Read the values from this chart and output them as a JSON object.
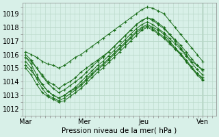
{
  "bg_color": "#d8f0e8",
  "grid_color": "#b8d8c8",
  "line_color": "#1a6e1a",
  "xlabel": "Pression niveau de la mer( hPa )",
  "xtick_labels": [
    "Mar",
    "Mer",
    "Jeu",
    "Ven"
  ],
  "xtick_positions": [
    0,
    96,
    192,
    288
  ],
  "ylim": [
    1011.5,
    1019.8
  ],
  "yticks": [
    1012,
    1013,
    1014,
    1015,
    1016,
    1017,
    1018,
    1019
  ],
  "xlim": [
    -5,
    310
  ],
  "vline_x": 288,
  "series": [
    [
      1016.2,
      1016.0,
      1015.8,
      1015.5,
      1015.3,
      1015.2,
      1015.0,
      1015.2,
      1015.5,
      1015.8,
      1016.0,
      1016.3,
      1016.6,
      1016.9,
      1017.2,
      1017.5,
      1017.8,
      1018.1,
      1018.4,
      1018.7,
      1019.0,
      1019.3,
      1019.5,
      1019.4,
      1019.2,
      1019.0,
      1018.5,
      1018.0,
      1017.5,
      1017.0,
      1016.5,
      1016.0,
      1015.5
    ],
    [
      1015.8,
      1015.5,
      1015.0,
      1014.5,
      1014.0,
      1013.8,
      1013.5,
      1013.8,
      1014.0,
      1014.3,
      1014.7,
      1015.0,
      1015.3,
      1015.6,
      1015.9,
      1016.2,
      1016.6,
      1017.0,
      1017.4,
      1017.8,
      1018.2,
      1018.5,
      1018.7,
      1018.6,
      1018.3,
      1018.0,
      1017.5,
      1017.0,
      1016.5,
      1016.0,
      1015.5,
      1015.2,
      1014.9
    ],
    [
      1015.2,
      1014.8,
      1014.3,
      1013.8,
      1013.3,
      1013.0,
      1012.8,
      1013.0,
      1013.3,
      1013.5,
      1013.8,
      1014.2,
      1014.6,
      1015.0,
      1015.3,
      1015.7,
      1016.1,
      1016.5,
      1016.9,
      1017.3,
      1017.7,
      1018.0,
      1018.2,
      1018.0,
      1017.8,
      1017.5,
      1017.0,
      1016.5,
      1016.0,
      1015.5,
      1015.0,
      1014.6,
      1014.3
    ],
    [
      1015.0,
      1014.5,
      1013.8,
      1013.2,
      1012.9,
      1012.7,
      1012.5,
      1012.6,
      1012.9,
      1013.2,
      1013.5,
      1013.9,
      1014.3,
      1014.7,
      1015.0,
      1015.4,
      1015.8,
      1016.2,
      1016.6,
      1017.0,
      1017.4,
      1017.8,
      1018.0,
      1017.8,
      1017.5,
      1017.2,
      1016.8,
      1016.4,
      1016.0,
      1015.5,
      1015.0,
      1014.5,
      1014.1
    ],
    [
      1015.5,
      1015.0,
      1014.2,
      1013.5,
      1013.0,
      1012.8,
      1012.6,
      1012.8,
      1013.1,
      1013.4,
      1013.7,
      1014.1,
      1014.5,
      1014.9,
      1015.2,
      1015.6,
      1016.0,
      1016.4,
      1016.8,
      1017.2,
      1017.6,
      1017.9,
      1018.1,
      1017.9,
      1017.6,
      1017.3,
      1016.9,
      1016.5,
      1016.1,
      1015.6,
      1015.1,
      1014.6,
      1014.2
    ],
    [
      1015.8,
      1015.3,
      1014.5,
      1013.8,
      1013.3,
      1013.0,
      1012.8,
      1013.0,
      1013.3,
      1013.6,
      1014.0,
      1014.4,
      1014.8,
      1015.2,
      1015.5,
      1015.9,
      1016.3,
      1016.7,
      1017.1,
      1017.5,
      1017.9,
      1018.2,
      1018.4,
      1018.2,
      1017.9,
      1017.6,
      1017.2,
      1016.8,
      1016.4,
      1015.9,
      1015.4,
      1014.9,
      1014.5
    ],
    [
      1016.0,
      1015.6,
      1015.0,
      1014.4,
      1013.9,
      1013.5,
      1013.2,
      1013.4,
      1013.7,
      1014.0,
      1014.3,
      1014.7,
      1015.1,
      1015.5,
      1015.8,
      1016.2,
      1016.6,
      1017.0,
      1017.4,
      1017.8,
      1018.2,
      1018.5,
      1018.7,
      1018.5,
      1018.2,
      1017.9,
      1017.5,
      1017.1,
      1016.7,
      1016.2,
      1015.7,
      1015.2,
      1014.8
    ]
  ]
}
